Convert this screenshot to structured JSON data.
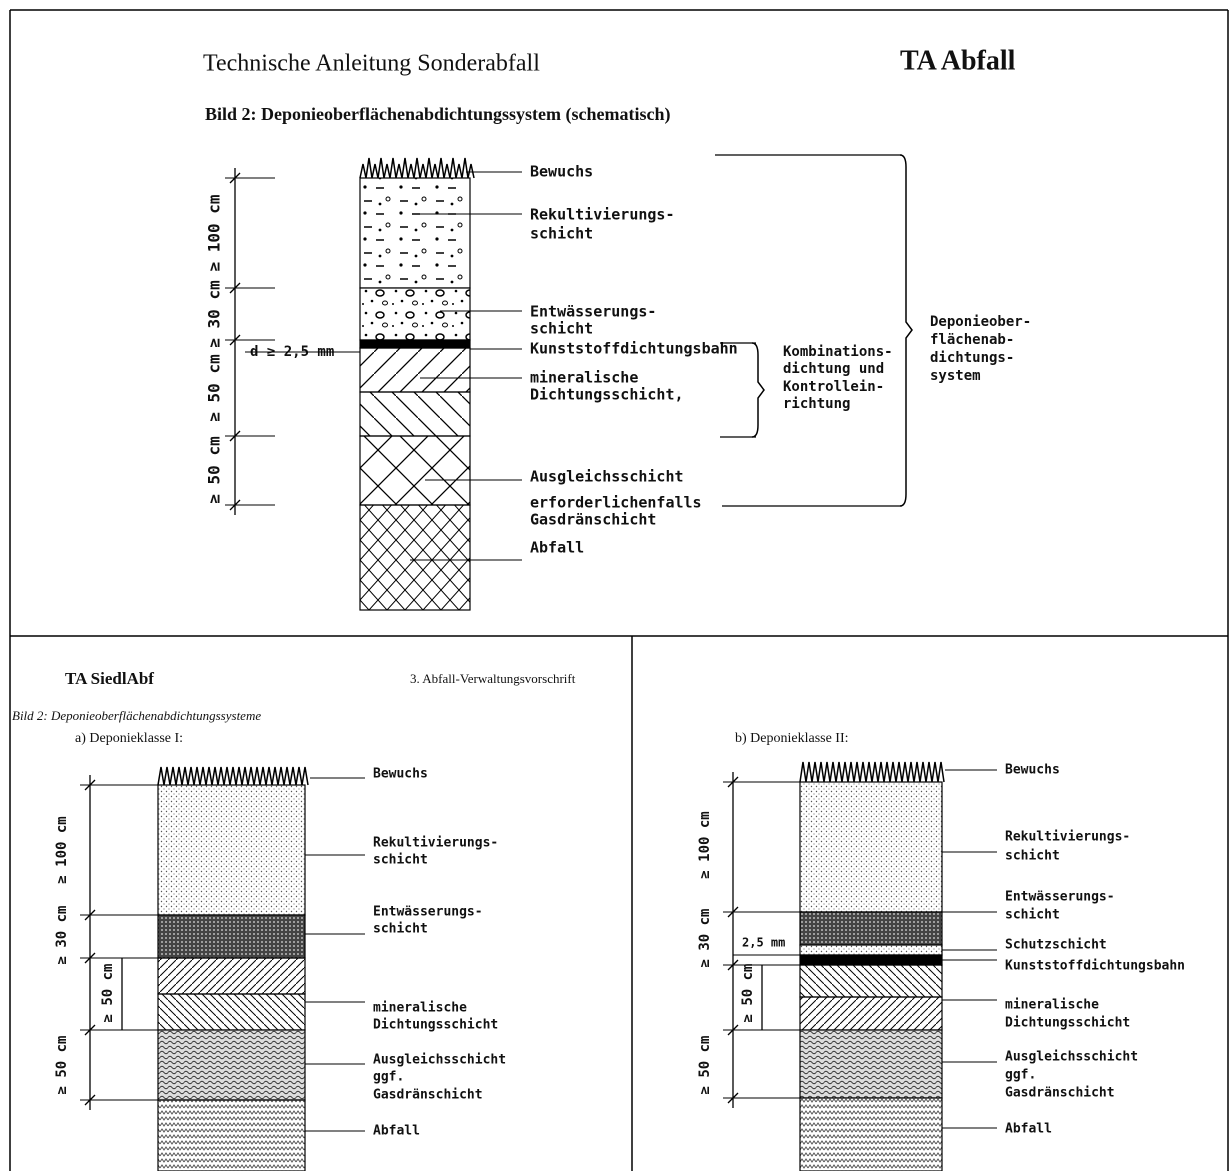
{
  "top": {
    "header_left": "Technische Anleitung Sonderabfall",
    "header_right": "TA Abfall",
    "figure_title": "Bild 2:  Deponieoberflächenabdichtungssystem (schematisch)",
    "labels": [
      [
        "Bewuchs"
      ],
      [
        "Rekultivierungs-",
        "schicht"
      ],
      [
        "Entwässerungs-",
        "schicht"
      ],
      [
        "Kunststoffdichtungsbahn"
      ],
      [
        "mineralische",
        "Dichtungsschicht,"
      ],
      [
        "Ausgleichsschicht"
      ],
      [
        "erforderlichenfalls",
        "Gasdränschicht"
      ],
      [
        "Abfall"
      ]
    ],
    "brackets": [
      [
        "Kombinations-",
        "dichtung und",
        "Kontrollein-",
        "richtung"
      ],
      [
        "Deponieober-",
        "flächenab-",
        "dichtungs-",
        "system"
      ]
    ],
    "dimensions": [
      "≥ 100 cm",
      "≥ 30 cm",
      "≥ 50 cm",
      "≥ 50 cm"
    ],
    "film_thickness": "d ≥ 2,5 mm"
  },
  "bottom_left": {
    "header_left": "TA SiedlAbf",
    "header_right": "3. Abfall-Verwaltungsvorschrift",
    "figure_title": "Bild 2: Deponieoberflächenabdichtungssysteme",
    "subtitle": "a) Deponieklasse I:",
    "labels": [
      [
        "Bewuchs"
      ],
      [
        "Rekultivierungs-",
        "schicht"
      ],
      [
        "Entwässerungs-",
        "schicht"
      ],
      [
        "mineralische",
        "Dichtungsschicht"
      ],
      [
        "Ausgleichsschicht",
        "ggf.",
        "Gasdränschicht"
      ],
      [
        "Abfall"
      ]
    ],
    "dimensions": [
      "≥ 100 cm",
      "≥ 30 cm",
      "≥ 50 cm",
      "≥ 50 cm"
    ]
  },
  "bottom_right": {
    "subtitle": "b) Deponieklasse II:",
    "labels": [
      [
        "Bewuchs"
      ],
      [
        "Rekultivierungs-",
        "schicht"
      ],
      [
        "Entwässerungs-",
        "schicht"
      ],
      [
        "Schutzschicht"
      ],
      [
        "Kunststoffdichtungsbahn"
      ],
      [
        "mineralische",
        "Dichtungsschicht"
      ],
      [
        "Ausgleichsschicht",
        "ggf.",
        "Gasdränschicht"
      ],
      [
        "Abfall"
      ]
    ],
    "dimensions": [
      "≥ 100 cm",
      "≥ 30 cm",
      "≥ 50 cm",
      "≥ 50 cm"
    ],
    "film_thickness": "2,5 mm"
  }
}
